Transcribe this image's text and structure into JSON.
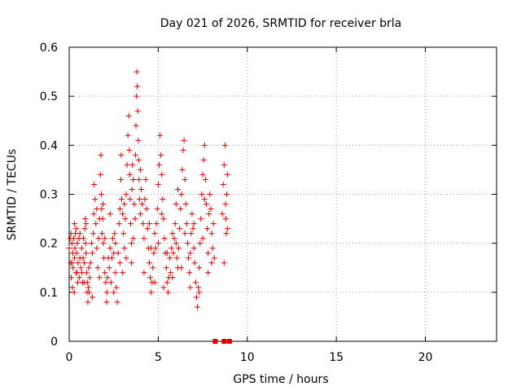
{
  "chart_data": {
    "type": "scatter",
    "title": "Day 021 of 2026, SRMTID for receiver brla",
    "xlabel": "GPS time / hours",
    "ylabel": "SRMTID / TECUs",
    "xlim": [
      0,
      24
    ],
    "ylim": [
      0,
      0.6
    ],
    "xticks": [
      0,
      5,
      10,
      15,
      20
    ],
    "yticks": [
      0,
      0.1,
      0.2,
      0.3,
      0.4,
      0.5,
      0.6
    ],
    "xtick_labels": [
      "0",
      "5",
      "10",
      "15",
      "20"
    ],
    "ytick_labels": [
      "0",
      "0.1",
      "0.2",
      "0.3",
      "0.4",
      "0.5",
      "0.6"
    ],
    "grid": true,
    "marker": "+",
    "color": "#e00000",
    "zero_markers": {
      "x": [
        8.2,
        8.7,
        9.0
      ],
      "y": 0
    },
    "series": [
      {
        "name": "brla",
        "points": [
          [
            0.0,
            0.19
          ],
          [
            0.05,
            0.21
          ],
          [
            0.08,
            0.16
          ],
          [
            0.1,
            0.22
          ],
          [
            0.12,
            0.13
          ],
          [
            0.15,
            0.2
          ],
          [
            0.18,
            0.11
          ],
          [
            0.2,
            0.18
          ],
          [
            0.22,
            0.15
          ],
          [
            0.25,
            0.21
          ],
          [
            0.28,
            0.1
          ],
          [
            0.3,
            0.17
          ],
          [
            0.32,
            0.19
          ],
          [
            0.35,
            0.22
          ],
          [
            0.38,
            0.14
          ],
          [
            0.4,
            0.23
          ],
          [
            0.42,
            0.18
          ],
          [
            0.45,
            0.2
          ],
          [
            0.48,
            0.12
          ],
          [
            0.5,
            0.16
          ],
          [
            0.55,
            0.21
          ],
          [
            0.58,
            0.13
          ],
          [
            0.6,
            0.17
          ],
          [
            0.65,
            0.15
          ],
          [
            0.7,
            0.19
          ],
          [
            0.72,
            0.14
          ],
          [
            0.75,
            0.12
          ],
          [
            0.78,
            0.17
          ],
          [
            0.8,
            0.21
          ],
          [
            0.85,
            0.16
          ],
          [
            0.88,
            0.23
          ],
          [
            0.9,
            0.25
          ],
          [
            0.92,
            0.2
          ],
          [
            0.95,
            0.24
          ],
          [
            0.98,
            0.14
          ],
          [
            1.0,
            0.1
          ],
          [
            1.02,
            0.12
          ],
          [
            1.05,
            0.08
          ],
          [
            1.08,
            0.11
          ],
          [
            1.1,
            0.15
          ],
          [
            1.12,
            0.1
          ],
          [
            1.15,
            0.13
          ],
          [
            1.2,
            0.16
          ],
          [
            1.25,
            0.2
          ],
          [
            1.3,
            0.18
          ],
          [
            1.35,
            0.22
          ],
          [
            1.38,
            0.26
          ],
          [
            1.4,
            0.32
          ],
          [
            1.45,
            0.29
          ],
          [
            1.5,
            0.24
          ],
          [
            1.55,
            0.19
          ],
          [
            1.6,
            0.15
          ],
          [
            1.65,
            0.21
          ],
          [
            1.7,
            0.25
          ],
          [
            1.75,
            0.34
          ],
          [
            1.78,
            0.38
          ],
          [
            1.8,
            0.3
          ],
          [
            1.82,
            0.27
          ],
          [
            1.85,
            0.22
          ],
          [
            1.88,
            0.25
          ],
          [
            1.9,
            0.28
          ],
          [
            1.92,
            0.2
          ],
          [
            1.95,
            0.17
          ],
          [
            2.0,
            0.14
          ],
          [
            2.05,
            0.12
          ],
          [
            2.1,
            0.08
          ],
          [
            2.12,
            0.1
          ],
          [
            2.15,
            0.13
          ],
          [
            2.2,
            0.17
          ],
          [
            2.25,
            0.15
          ],
          [
            2.3,
            0.19
          ],
          [
            2.35,
            0.12
          ],
          [
            2.4,
            0.17
          ],
          [
            2.45,
            0.21
          ],
          [
            2.5,
            0.18
          ],
          [
            2.55,
            0.22
          ],
          [
            2.6,
            0.14
          ],
          [
            2.65,
            0.11
          ],
          [
            2.7,
            0.08
          ],
          [
            2.75,
            0.18
          ],
          [
            2.8,
            0.24
          ],
          [
            2.85,
            0.27
          ],
          [
            2.9,
            0.33
          ],
          [
            2.92,
            0.38
          ],
          [
            2.95,
            0.29
          ],
          [
            3.0,
            0.26
          ],
          [
            3.05,
            0.22
          ],
          [
            3.1,
            0.19
          ],
          [
            3.15,
            0.25
          ],
          [
            3.2,
            0.3
          ],
          [
            3.25,
            0.36
          ],
          [
            3.3,
            0.42
          ],
          [
            3.35,
            0.46
          ],
          [
            3.38,
            0.39
          ],
          [
            3.4,
            0.34
          ],
          [
            3.42,
            0.29
          ],
          [
            3.45,
            0.24
          ],
          [
            3.5,
            0.2
          ],
          [
            3.52,
            0.31
          ],
          [
            3.55,
            0.36
          ],
          [
            3.6,
            0.33
          ],
          [
            3.65,
            0.28
          ],
          [
            3.7,
            0.25
          ],
          [
            3.72,
            0.38
          ],
          [
            3.75,
            0.44
          ],
          [
            3.78,
            0.5
          ],
          [
            3.8,
            0.55
          ],
          [
            3.82,
            0.52
          ],
          [
            3.85,
            0.47
          ],
          [
            3.88,
            0.41
          ],
          [
            3.9,
            0.37
          ],
          [
            3.92,
            0.33
          ],
          [
            3.95,
            0.29
          ],
          [
            4.0,
            0.26
          ],
          [
            4.05,
            0.31
          ],
          [
            4.1,
            0.28
          ],
          [
            4.15,
            0.24
          ],
          [
            4.2,
            0.21
          ],
          [
            4.25,
            0.29
          ],
          [
            4.3,
            0.33
          ],
          [
            4.35,
            0.27
          ],
          [
            4.4,
            0.23
          ],
          [
            4.45,
            0.19
          ],
          [
            4.5,
            0.16
          ],
          [
            4.55,
            0.13
          ],
          [
            4.6,
            0.1
          ],
          [
            4.65,
            0.12
          ],
          [
            4.7,
            0.15
          ],
          [
            4.75,
            0.18
          ],
          [
            4.8,
            0.22
          ],
          [
            4.85,
            0.19
          ],
          [
            4.9,
            0.24
          ],
          [
            4.95,
            0.27
          ],
          [
            5.0,
            0.32
          ],
          [
            5.05,
            0.36
          ],
          [
            5.1,
            0.42
          ],
          [
            5.15,
            0.38
          ],
          [
            5.2,
            0.34
          ],
          [
            5.25,
            0.29
          ],
          [
            5.3,
            0.25
          ],
          [
            5.35,
            0.21
          ],
          [
            5.4,
            0.18
          ],
          [
            5.45,
            0.15
          ],
          [
            5.5,
            0.12
          ],
          [
            5.55,
            0.1
          ],
          [
            5.6,
            0.13
          ],
          [
            5.65,
            0.17
          ],
          [
            5.7,
            0.14
          ],
          [
            5.75,
            0.19
          ],
          [
            5.8,
            0.22
          ],
          [
            5.85,
            0.18
          ],
          [
            5.9,
            0.21
          ],
          [
            5.95,
            0.24
          ],
          [
            6.0,
            0.2
          ],
          [
            6.05,
            0.17
          ],
          [
            6.1,
            0.15
          ],
          [
            6.15,
            0.19
          ],
          [
            6.2,
            0.23
          ],
          [
            6.25,
            0.27
          ],
          [
            6.3,
            0.3
          ],
          [
            6.35,
            0.35
          ],
          [
            6.4,
            0.39
          ],
          [
            6.45,
            0.41
          ],
          [
            6.5,
            0.33
          ],
          [
            6.55,
            0.28
          ],
          [
            6.6,
            0.24
          ],
          [
            6.65,
            0.2
          ],
          [
            6.7,
            0.17
          ],
          [
            6.75,
            0.14
          ],
          [
            6.8,
            0.18
          ],
          [
            6.85,
            0.22
          ],
          [
            6.9,
            0.26
          ],
          [
            6.95,
            0.23
          ],
          [
            7.0,
            0.19
          ],
          [
            7.05,
            0.16
          ],
          [
            7.1,
            0.12
          ],
          [
            7.15,
            0.09
          ],
          [
            7.2,
            0.07
          ],
          [
            7.25,
            0.11
          ],
          [
            7.3,
            0.15
          ],
          [
            7.35,
            0.2
          ],
          [
            7.4,
            0.25
          ],
          [
            7.45,
            0.3
          ],
          [
            7.5,
            0.34
          ],
          [
            7.55,
            0.37
          ],
          [
            7.6,
            0.4
          ],
          [
            7.65,
            0.33
          ],
          [
            7.7,
            0.28
          ],
          [
            7.75,
            0.23
          ],
          [
            7.8,
            0.18
          ],
          [
            7.85,
            0.26
          ],
          [
            7.9,
            0.3
          ],
          [
            7.95,
            0.27
          ],
          [
            8.0,
            0.22
          ],
          [
            8.05,
            0.19
          ],
          [
            8.1,
            0.24
          ],
          [
            8.15,
            0.17
          ],
          [
            8.6,
            0.26
          ],
          [
            8.65,
            0.32
          ],
          [
            8.7,
            0.36
          ],
          [
            8.75,
            0.4
          ],
          [
            8.78,
            0.28
          ],
          [
            8.8,
            0.25
          ],
          [
            8.82,
            0.22
          ],
          [
            8.85,
            0.3
          ],
          [
            8.88,
            0.34
          ],
          [
            8.9,
            0.23
          ],
          [
            8.7,
            0.16
          ],
          [
            0.3,
            0.24
          ],
          [
            0.6,
            0.22
          ],
          [
            0.95,
            0.18
          ],
          [
            1.55,
            0.27
          ],
          [
            2.0,
            0.21
          ],
          [
            2.3,
            0.26
          ],
          [
            2.6,
            0.2
          ],
          [
            3.1,
            0.28
          ],
          [
            3.6,
            0.21
          ],
          [
            4.0,
            0.35
          ],
          [
            4.5,
            0.24
          ],
          [
            5.0,
            0.2
          ],
          [
            5.5,
            0.18
          ],
          [
            6.0,
            0.28
          ],
          [
            6.5,
            0.22
          ],
          [
            7.0,
            0.24
          ],
          [
            7.5,
            0.21
          ],
          [
            8.0,
            0.16
          ],
          [
            0.15,
            0.16
          ],
          [
            0.45,
            0.14
          ],
          [
            0.85,
            0.12
          ],
          [
            1.3,
            0.09
          ],
          [
            1.7,
            0.13
          ],
          [
            2.5,
            0.1
          ],
          [
            3.0,
            0.14
          ],
          [
            3.5,
            0.16
          ],
          [
            4.2,
            0.14
          ],
          [
            4.8,
            0.12
          ],
          [
            5.3,
            0.11
          ],
          [
            5.8,
            0.13
          ],
          [
            6.3,
            0.15
          ],
          [
            6.8,
            0.11
          ],
          [
            7.3,
            0.1
          ],
          [
            7.8,
            0.14
          ],
          [
            3.2,
            0.17
          ],
          [
            4.6,
            0.19
          ],
          [
            6.1,
            0.31
          ],
          [
            7.6,
            0.29
          ],
          [
            2.85,
            0.16
          ],
          [
            5.2,
            0.26
          ]
        ]
      }
    ]
  }
}
